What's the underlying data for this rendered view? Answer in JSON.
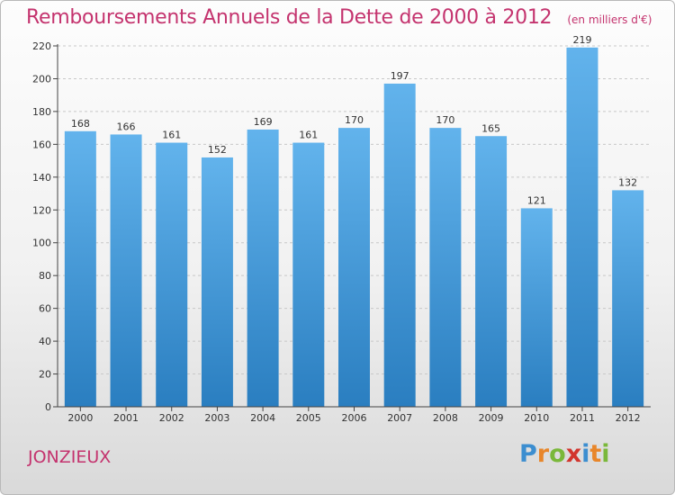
{
  "header": {
    "title": "Remboursements Annuels de la Dette de 2000 à 2012",
    "unit": "(en milliers d'€)"
  },
  "footer": {
    "commune": "JONZIEUX",
    "brand": "Proxiti"
  },
  "colors": {
    "accent": "#c4336e",
    "bar_top": "#62b3ec",
    "bar_bottom": "#2a7ec0",
    "grid": "#c8c8c8"
  },
  "chart_data": {
    "type": "bar",
    "title": "Remboursements Annuels de la Dette de 2000 à 2012",
    "xlabel": "",
    "ylabel": "",
    "categories": [
      "2000",
      "2001",
      "2002",
      "2003",
      "2004",
      "2005",
      "2006",
      "2007",
      "2008",
      "2009",
      "2010",
      "2011",
      "2012"
    ],
    "values": [
      168,
      166,
      161,
      152,
      169,
      161,
      170,
      197,
      170,
      165,
      121,
      219,
      132
    ],
    "ylim": [
      0,
      220
    ],
    "yticks": [
      0,
      20,
      40,
      60,
      80,
      100,
      120,
      140,
      160,
      180,
      200,
      220
    ],
    "grid": true,
    "legend": "none"
  }
}
